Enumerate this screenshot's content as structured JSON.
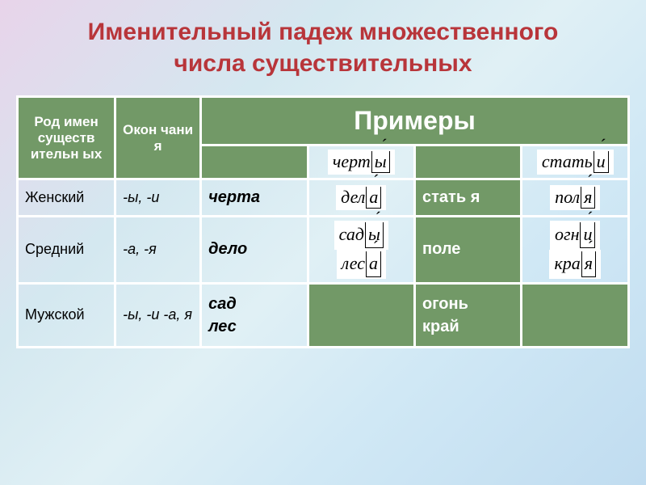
{
  "title_line1": "Именительный падеж множественного",
  "title_line2": "числа существительных",
  "title_color": "#b8353a",
  "table": {
    "header_bg": "#729967",
    "header_fg": "#ffffff",
    "col_gender": "Род имен существ ительн ых",
    "col_endings": "Окон чани я",
    "col_examples": "Примеры",
    "rows": [
      {
        "gender": "Женский",
        "endings": "-ы, -и",
        "ex_words": [
          "черта"
        ],
        "ex_words2": [
          "стать я"
        ],
        "ending_top1": {
          "stem": "черт",
          "suffix": "ы"
        },
        "ending_top2": {
          "stem": "стать",
          "suffix": "и"
        }
      },
      {
        "gender": "Средний",
        "endings": "-а, -я",
        "ex_words": [
          "дело"
        ],
        "ex_words2": [
          "поле"
        ],
        "ending_top1": {
          "stem": "дел",
          "suffix": "а"
        },
        "ending_top2": {
          "stem": "пол",
          "suffix": "я"
        }
      },
      {
        "gender": "Мужской",
        "endings": "-ы, -и -а, я",
        "ex_words": [
          "сад",
          "лес"
        ],
        "ex_words2": [
          "огонь",
          "край"
        ],
        "ending_top1a": {
          "stem": "сад",
          "suffix": "ы"
        },
        "ending_top1b": {
          "stem": "лес",
          "suffix": "а"
        },
        "ending_top2a": {
          "stem": "огн",
          "suffix": "и"
        },
        "ending_top2b": {
          "stem": "кра",
          "suffix": "я"
        }
      }
    ]
  }
}
